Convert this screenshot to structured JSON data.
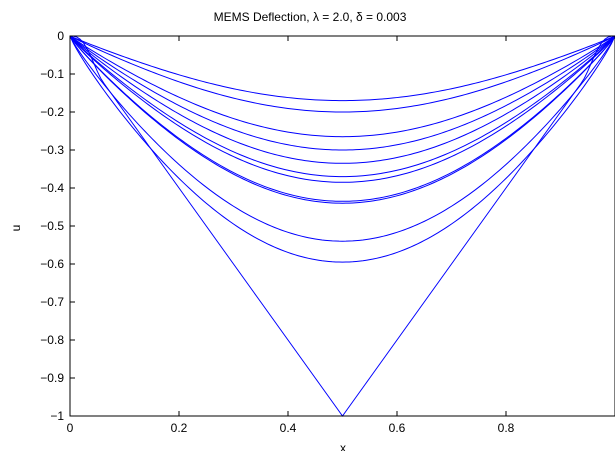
{
  "chart_data": {
    "type": "line",
    "title": "MEMS Deflection, λ = 2.0, δ = 0.003",
    "xlabel": "x",
    "ylabel": "u",
    "xlim": [
      0,
      1
    ],
    "ylim": [
      -1,
      0
    ],
    "xticks": [
      0,
      0.2,
      0.4,
      0.6,
      0.8
    ],
    "xtick_labels": [
      "0",
      "0.2",
      "0.4",
      "0.6",
      "0.8"
    ],
    "yticks": [
      0,
      -0.1,
      -0.2,
      -0.3,
      -0.4,
      -0.5,
      -0.6,
      -0.7,
      -0.8,
      -0.9,
      -1
    ],
    "ytick_labels": [
      "0",
      "−0.1",
      "−0.2",
      "−0.3",
      "−0.4",
      "−0.5",
      "−0.6",
      "−0.7",
      "−0.8",
      "−0.9",
      "−1"
    ],
    "grid": false,
    "line_color": "#0000ff",
    "curve_minima_at_x_0_5": [
      -0.17,
      -0.2,
      -0.265,
      -0.3,
      -0.335,
      -0.37,
      -0.385,
      -0.435,
      -0.44,
      -0.54,
      -0.595,
      -1.0
    ]
  }
}
